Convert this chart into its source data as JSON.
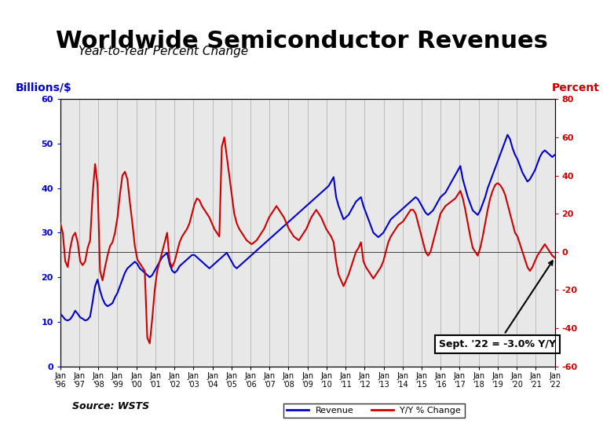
{
  "title": "Worldwide Semiconductor Revenues",
  "subtitle": "Year-to-Year Percent Change",
  "ylabel_left": "Billions/$",
  "ylabel_right": "Percent",
  "source": "Source: WSTS",
  "annotation": "Sept. '22 = -3.0% Y/Y",
  "ylim_left": [
    0,
    60
  ],
  "ylim_right": [
    -60,
    80
  ],
  "revenue": [
    11.8,
    11.2,
    10.5,
    10.3,
    10.6,
    11.4,
    12.5,
    11.8,
    11.0,
    10.7,
    10.3,
    10.5,
    11.2,
    14.5,
    18.0,
    19.5,
    17.0,
    15.2,
    14.0,
    13.5,
    13.8,
    14.2,
    15.5,
    16.5,
    18.0,
    19.5,
    21.0,
    22.0,
    22.5,
    23.0,
    23.5,
    23.0,
    22.0,
    21.5,
    21.0,
    20.5,
    20.0,
    20.5,
    21.5,
    22.5,
    23.5,
    24.5,
    25.0,
    25.5,
    23.0,
    21.5,
    21.0,
    21.5,
    22.5,
    23.0,
    23.5,
    24.0,
    24.5,
    25.0,
    25.0,
    24.5,
    24.0,
    23.5,
    23.0,
    22.5,
    22.0,
    22.5,
    23.0,
    23.5,
    24.0,
    24.5,
    25.0,
    25.5,
    24.5,
    23.5,
    22.5,
    22.0,
    22.5,
    23.0,
    23.5,
    24.0,
    24.5,
    25.0,
    25.5,
    26.0,
    26.5,
    27.0,
    27.5,
    28.0,
    28.5,
    29.0,
    29.5,
    30.0,
    30.5,
    31.0,
    31.5,
    32.0,
    32.5,
    33.0,
    33.5,
    34.0,
    34.5,
    35.0,
    35.5,
    36.0,
    36.5,
    37.0,
    37.5,
    38.0,
    38.5,
    39.0,
    39.5,
    40.0,
    40.5,
    41.5,
    42.5,
    38.0,
    36.0,
    34.5,
    33.0,
    33.5,
    34.0,
    35.0,
    36.0,
    37.0,
    37.5,
    38.0,
    36.0,
    34.5,
    33.0,
    31.5,
    30.0,
    29.5,
    29.0,
    29.5,
    30.0,
    31.0,
    32.0,
    33.0,
    33.5,
    34.0,
    34.5,
    35.0,
    35.5,
    36.0,
    36.5,
    37.0,
    37.5,
    38.0,
    37.5,
    36.5,
    35.5,
    34.5,
    34.0,
    34.5,
    35.0,
    36.0,
    37.0,
    38.0,
    38.5,
    39.0,
    40.0,
    41.0,
    42.0,
    43.0,
    44.0,
    45.0,
    42.0,
    40.0,
    38.0,
    36.5,
    35.0,
    34.5,
    34.0,
    35.0,
    36.5,
    38.0,
    40.0,
    41.5,
    43.0,
    44.5,
    46.0,
    47.5,
    49.0,
    50.5,
    52.0,
    51.0,
    49.0,
    47.5,
    46.5,
    45.0,
    43.5,
    42.5,
    41.5,
    42.0,
    43.0,
    44.0,
    45.5,
    47.0,
    48.0,
    48.5,
    48.0,
    47.5,
    47.0,
    47.5
  ],
  "yoy": [
    15.0,
    10.0,
    -5.0,
    -8.0,
    2.0,
    8.0,
    10.0,
    5.0,
    -5.0,
    -7.0,
    -5.0,
    2.0,
    6.0,
    30.0,
    46.0,
    35.0,
    -10.0,
    -15.0,
    -8.0,
    -2.0,
    3.0,
    5.0,
    10.0,
    18.0,
    30.0,
    40.0,
    42.0,
    38.0,
    26.0,
    15.0,
    3.0,
    -4.0,
    -6.0,
    -8.0,
    -10.0,
    -45.0,
    -48.0,
    -35.0,
    -20.0,
    -10.0,
    -5.0,
    0.0,
    5.0,
    10.0,
    -5.0,
    -8.0,
    -5.0,
    0.0,
    5.0,
    8.0,
    10.0,
    12.0,
    15.0,
    20.0,
    25.0,
    28.0,
    27.0,
    24.0,
    22.0,
    20.0,
    18.0,
    15.0,
    12.0,
    10.0,
    8.0,
    55.0,
    60.0,
    50.0,
    40.0,
    30.0,
    20.0,
    15.0,
    12.0,
    10.0,
    8.0,
    6.0,
    5.0,
    4.0,
    5.0,
    6.0,
    8.0,
    10.0,
    12.0,
    15.0,
    18.0,
    20.0,
    22.0,
    24.0,
    22.0,
    20.0,
    18.0,
    15.0,
    12.0,
    10.0,
    8.0,
    7.0,
    6.0,
    8.0,
    10.0,
    12.0,
    15.0,
    18.0,
    20.0,
    22.0,
    20.0,
    18.0,
    15.0,
    12.0,
    10.0,
    8.0,
    5.0,
    -5.0,
    -12.0,
    -15.0,
    -18.0,
    -15.0,
    -12.0,
    -8.0,
    -4.0,
    0.0,
    2.0,
    5.0,
    -5.0,
    -8.0,
    -10.0,
    -12.0,
    -14.0,
    -12.0,
    -10.0,
    -8.0,
    -5.0,
    0.0,
    5.0,
    8.0,
    10.0,
    12.0,
    14.0,
    15.0,
    16.0,
    18.0,
    20.0,
    22.0,
    22.0,
    20.0,
    15.0,
    10.0,
    5.0,
    0.0,
    -2.0,
    0.0,
    5.0,
    10.0,
    15.0,
    20.0,
    22.0,
    24.0,
    25.0,
    26.0,
    27.0,
    28.0,
    30.0,
    32.0,
    28.0,
    22.0,
    15.0,
    8.0,
    2.0,
    0.0,
    -2.0,
    2.0,
    8.0,
    15.0,
    22.0,
    28.0,
    32.0,
    35.0,
    36.0,
    35.0,
    33.0,
    30.0,
    25.0,
    20.0,
    15.0,
    10.0,
    8.0,
    4.0,
    0.0,
    -4.0,
    -8.0,
    -10.0,
    -8.0,
    -5.0,
    -2.0,
    0.0,
    2.0,
    4.0,
    2.0,
    0.0,
    -2.0,
    -3.0
  ],
  "x_tick_years": [
    "'96",
    "'97",
    "'98",
    "'99",
    "'00",
    "'01",
    "'02",
    "'03",
    "'04",
    "'05",
    "'06",
    "'07",
    "'08",
    "'09",
    "'10",
    "'11",
    "'12",
    "'13",
    "'14",
    "'15",
    "'16",
    "'17",
    "'18",
    "'19",
    "'20",
    "'21",
    "'22"
  ],
  "revenue_color": "#0000CC",
  "yoy_color": "#CC0000",
  "background_color": "#FFFFFF",
  "grid_color": "#AAAAAA",
  "arrow_color": "#000000",
  "title_fontsize": 22,
  "subtitle_fontsize": 11,
  "label_fontsize": 10,
  "tick_fontsize": 8
}
